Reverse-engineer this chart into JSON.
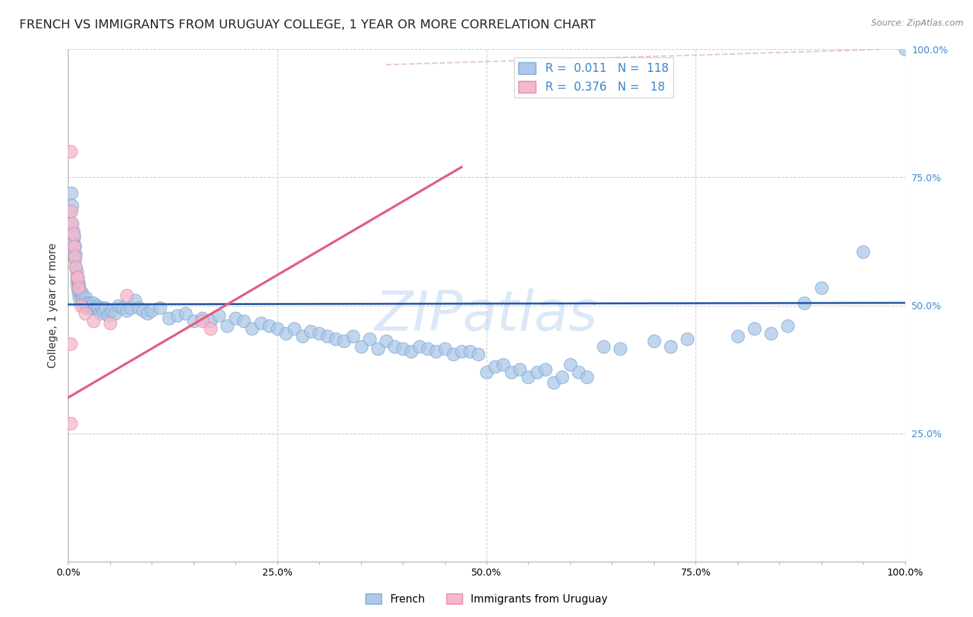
{
  "title": "FRENCH VS IMMIGRANTS FROM URUGUAY COLLEGE, 1 YEAR OR MORE CORRELATION CHART",
  "source_text": "Source: ZipAtlas.com",
  "ylabel": "College, 1 year or more",
  "xlabel": "",
  "xlim": [
    0.0,
    1.0
  ],
  "ylim": [
    0.0,
    1.0
  ],
  "xtick_labels": [
    "0.0%",
    "",
    "",
    "",
    "",
    "25.0%",
    "",
    "",
    "",
    "",
    "50.0%",
    "",
    "",
    "",
    "",
    "75.0%",
    "",
    "",
    "",
    "",
    "100.0%"
  ],
  "xtick_positions": [
    0.0,
    0.05,
    0.1,
    0.15,
    0.2,
    0.25,
    0.3,
    0.35,
    0.4,
    0.45,
    0.5,
    0.55,
    0.6,
    0.65,
    0.7,
    0.75,
    0.8,
    0.85,
    0.9,
    0.95,
    1.0
  ],
  "ytick_labels": [
    "25.0%",
    "50.0%",
    "75.0%",
    "100.0%"
  ],
  "ytick_positions": [
    0.25,
    0.5,
    0.75,
    1.0
  ],
  "french_color": "#adc8e8",
  "french_edge_color": "#7aaad0",
  "uruguay_color": "#f5b8cc",
  "uruguay_edge_color": "#e888a8",
  "french_line_color": "#2255aa",
  "uruguay_line_color": "#e06080",
  "dashed_line_color": "#e0b8c8",
  "watermark_text": "ZIPatlas",
  "watermark_color": "#b0ccee",
  "blue_R": 0.011,
  "blue_N": 118,
  "pink_R": 0.376,
  "pink_N": 18,
  "french_scatter": [
    [
      0.003,
      0.685
    ],
    [
      0.004,
      0.72
    ],
    [
      0.005,
      0.695
    ],
    [
      0.005,
      0.66
    ],
    [
      0.006,
      0.645
    ],
    [
      0.006,
      0.625
    ],
    [
      0.007,
      0.6
    ],
    [
      0.007,
      0.635
    ],
    [
      0.008,
      0.615
    ],
    [
      0.008,
      0.59
    ],
    [
      0.009,
      0.575
    ],
    [
      0.009,
      0.6
    ],
    [
      0.01,
      0.565
    ],
    [
      0.01,
      0.545
    ],
    [
      0.011,
      0.555
    ],
    [
      0.011,
      0.535
    ],
    [
      0.012,
      0.545
    ],
    [
      0.012,
      0.525
    ],
    [
      0.013,
      0.515
    ],
    [
      0.013,
      0.54
    ],
    [
      0.014,
      0.53
    ],
    [
      0.015,
      0.515
    ],
    [
      0.016,
      0.525
    ],
    [
      0.017,
      0.505
    ],
    [
      0.018,
      0.515
    ],
    [
      0.019,
      0.5
    ],
    [
      0.02,
      0.505
    ],
    [
      0.021,
      0.515
    ],
    [
      0.022,
      0.495
    ],
    [
      0.023,
      0.505
    ],
    [
      0.024,
      0.5
    ],
    [
      0.025,
      0.495
    ],
    [
      0.026,
      0.505
    ],
    [
      0.027,
      0.495
    ],
    [
      0.028,
      0.5
    ],
    [
      0.03,
      0.505
    ],
    [
      0.032,
      0.495
    ],
    [
      0.034,
      0.5
    ],
    [
      0.036,
      0.495
    ],
    [
      0.038,
      0.485
    ],
    [
      0.04,
      0.495
    ],
    [
      0.042,
      0.49
    ],
    [
      0.044,
      0.495
    ],
    [
      0.048,
      0.48
    ],
    [
      0.052,
      0.49
    ],
    [
      0.056,
      0.485
    ],
    [
      0.06,
      0.5
    ],
    [
      0.065,
      0.495
    ],
    [
      0.07,
      0.49
    ],
    [
      0.075,
      0.495
    ],
    [
      0.08,
      0.51
    ],
    [
      0.085,
      0.495
    ],
    [
      0.09,
      0.49
    ],
    [
      0.095,
      0.485
    ],
    [
      0.1,
      0.49
    ],
    [
      0.11,
      0.495
    ],
    [
      0.12,
      0.475
    ],
    [
      0.13,
      0.48
    ],
    [
      0.14,
      0.485
    ],
    [
      0.15,
      0.47
    ],
    [
      0.16,
      0.475
    ],
    [
      0.17,
      0.47
    ],
    [
      0.18,
      0.48
    ],
    [
      0.19,
      0.46
    ],
    [
      0.2,
      0.475
    ],
    [
      0.21,
      0.47
    ],
    [
      0.22,
      0.455
    ],
    [
      0.23,
      0.465
    ],
    [
      0.24,
      0.46
    ],
    [
      0.25,
      0.455
    ],
    [
      0.26,
      0.445
    ],
    [
      0.27,
      0.455
    ],
    [
      0.28,
      0.44
    ],
    [
      0.29,
      0.45
    ],
    [
      0.3,
      0.445
    ],
    [
      0.31,
      0.44
    ],
    [
      0.32,
      0.435
    ],
    [
      0.33,
      0.43
    ],
    [
      0.34,
      0.44
    ],
    [
      0.35,
      0.42
    ],
    [
      0.36,
      0.435
    ],
    [
      0.37,
      0.415
    ],
    [
      0.38,
      0.43
    ],
    [
      0.39,
      0.42
    ],
    [
      0.4,
      0.415
    ],
    [
      0.41,
      0.41
    ],
    [
      0.42,
      0.42
    ],
    [
      0.43,
      0.415
    ],
    [
      0.44,
      0.41
    ],
    [
      0.45,
      0.415
    ],
    [
      0.46,
      0.405
    ],
    [
      0.47,
      0.41
    ],
    [
      0.48,
      0.41
    ],
    [
      0.49,
      0.405
    ],
    [
      0.5,
      0.37
    ],
    [
      0.51,
      0.38
    ],
    [
      0.52,
      0.385
    ],
    [
      0.53,
      0.37
    ],
    [
      0.54,
      0.375
    ],
    [
      0.55,
      0.36
    ],
    [
      0.56,
      0.37
    ],
    [
      0.57,
      0.375
    ],
    [
      0.58,
      0.35
    ],
    [
      0.59,
      0.36
    ],
    [
      0.6,
      0.385
    ],
    [
      0.61,
      0.37
    ],
    [
      0.62,
      0.36
    ],
    [
      0.64,
      0.42
    ],
    [
      0.66,
      0.415
    ],
    [
      0.7,
      0.43
    ],
    [
      0.72,
      0.42
    ],
    [
      0.74,
      0.435
    ],
    [
      0.8,
      0.44
    ],
    [
      0.82,
      0.455
    ],
    [
      0.84,
      0.445
    ],
    [
      0.86,
      0.46
    ],
    [
      0.88,
      0.505
    ],
    [
      0.9,
      0.535
    ],
    [
      0.95,
      0.605
    ],
    [
      1.0,
      1.0
    ]
  ],
  "uruguay_scatter": [
    [
      0.003,
      0.8
    ],
    [
      0.004,
      0.685
    ],
    [
      0.005,
      0.66
    ],
    [
      0.006,
      0.64
    ],
    [
      0.007,
      0.615
    ],
    [
      0.008,
      0.595
    ],
    [
      0.009,
      0.575
    ],
    [
      0.01,
      0.555
    ],
    [
      0.011,
      0.555
    ],
    [
      0.012,
      0.535
    ],
    [
      0.015,
      0.5
    ],
    [
      0.02,
      0.485
    ],
    [
      0.03,
      0.47
    ],
    [
      0.05,
      0.465
    ],
    [
      0.07,
      0.52
    ],
    [
      0.16,
      0.47
    ],
    [
      0.17,
      0.455
    ],
    [
      0.003,
      0.425
    ],
    [
      0.003,
      0.27
    ]
  ],
  "blue_line_y_intercept": 0.502,
  "blue_line_slope": 0.003,
  "pink_line_x0": 0.0,
  "pink_line_y0": 0.32,
  "pink_line_x1": 0.47,
  "pink_line_y1": 0.77,
  "dashed_line_x0": 0.38,
  "dashed_line_y0": 0.97,
  "dashed_line_x1": 0.97,
  "dashed_line_y1": 1.0,
  "background_color": "#ffffff",
  "grid_color": "#cccccc",
  "title_fontsize": 13,
  "axis_label_fontsize": 11,
  "tick_fontsize": 10,
  "legend_fontsize": 12,
  "right_tick_color": "#4488cc"
}
